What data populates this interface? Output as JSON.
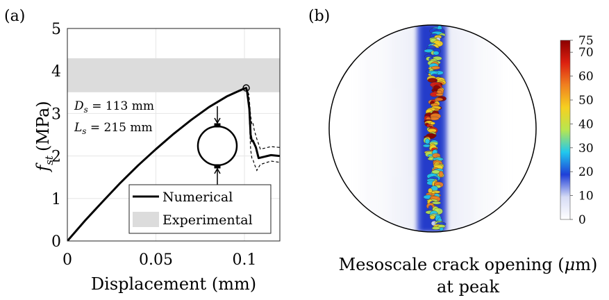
{
  "panels": {
    "a": {
      "label": "(a)"
    },
    "b": {
      "label": "(b)"
    }
  },
  "chart_data": [
    {
      "type": "line",
      "panel": "(a)",
      "xlabel": "Displacement (mm)",
      "ylabel_symbol": "f",
      "ylabel_sub": "st",
      "ylabel_unit": "(MPa)",
      "xlim": [
        0,
        0.12
      ],
      "ylim": [
        0,
        5
      ],
      "xticks": [
        0,
        0.05,
        0.1
      ],
      "xtick_labels": [
        "0",
        "0.05",
        "0.1"
      ],
      "yticks": [
        0,
        1,
        2,
        3,
        4,
        5
      ],
      "ytick_labels": [
        "0",
        "1",
        "2",
        "3",
        "4",
        "5"
      ],
      "grid": true,
      "legend_position": "bottom-right",
      "series": [
        {
          "name": "Numerical",
          "color": "#000000",
          "x": [
            0,
            0.01,
            0.02,
            0.03,
            0.04,
            0.05,
            0.06,
            0.07,
            0.08,
            0.09,
            0.0995,
            0.101,
            0.1015,
            0.1028,
            0.1035,
            0.1042,
            0.1048,
            0.1052,
            0.1065,
            0.108,
            0.11,
            0.115,
            0.12
          ],
          "y": [
            0,
            0.48,
            0.93,
            1.37,
            1.78,
            2.16,
            2.52,
            2.85,
            3.15,
            3.4,
            3.58,
            3.6,
            3.52,
            3.1,
            2.5,
            2.35,
            2.36,
            2.32,
            2.2,
            1.95,
            1.97,
            2.02,
            2.0
          ]
        }
      ],
      "envelope": {
        "x": [
          0.101,
          0.1025,
          0.1035,
          0.1042,
          0.1048,
          0.1055,
          0.107,
          0.109,
          0.115,
          0.12
        ],
        "upper": [
          3.6,
          3.45,
          2.95,
          2.75,
          2.78,
          2.62,
          2.4,
          2.16,
          2.22,
          2.2
        ],
        "lower": [
          3.6,
          3.15,
          2.15,
          1.95,
          1.92,
          1.82,
          1.66,
          1.8,
          1.88,
          1.85
        ]
      },
      "band": {
        "name": "Experimental",
        "color": "#dcdcdc",
        "y_low": 3.5,
        "y_high": 4.3
      },
      "peak_marker": {
        "x": 0.101,
        "y": 3.6
      },
      "annotations": {
        "ds_sym": "D",
        "ds_sub": "s",
        "ds_value": " = 113 mm",
        "ls_sym": "L",
        "ls_sub": "s",
        "ls_value": " = 215 mm"
      }
    },
    {
      "type": "heatmap",
      "panel": "(b)",
      "title_line1": "Mesoscale crack opening (",
      "title_mu": "μ",
      "title_line1_end": "m)",
      "title_line2": "at peak",
      "colorbar": {
        "ticks": [
          0,
          10,
          20,
          30,
          40,
          50,
          60,
          70,
          75
        ],
        "tick_labels": [
          "0",
          "10",
          "20",
          "30",
          "40",
          "50",
          "60",
          "70",
          "75"
        ],
        "range": [
          0,
          75
        ],
        "colors": [
          "#ffffff",
          "#d6dbf5",
          "#1f3fd8",
          "#21c8ee",
          "#b8e650",
          "#f6d020",
          "#f08020",
          "#dc2010",
          "#8c0000"
        ]
      }
    }
  ]
}
